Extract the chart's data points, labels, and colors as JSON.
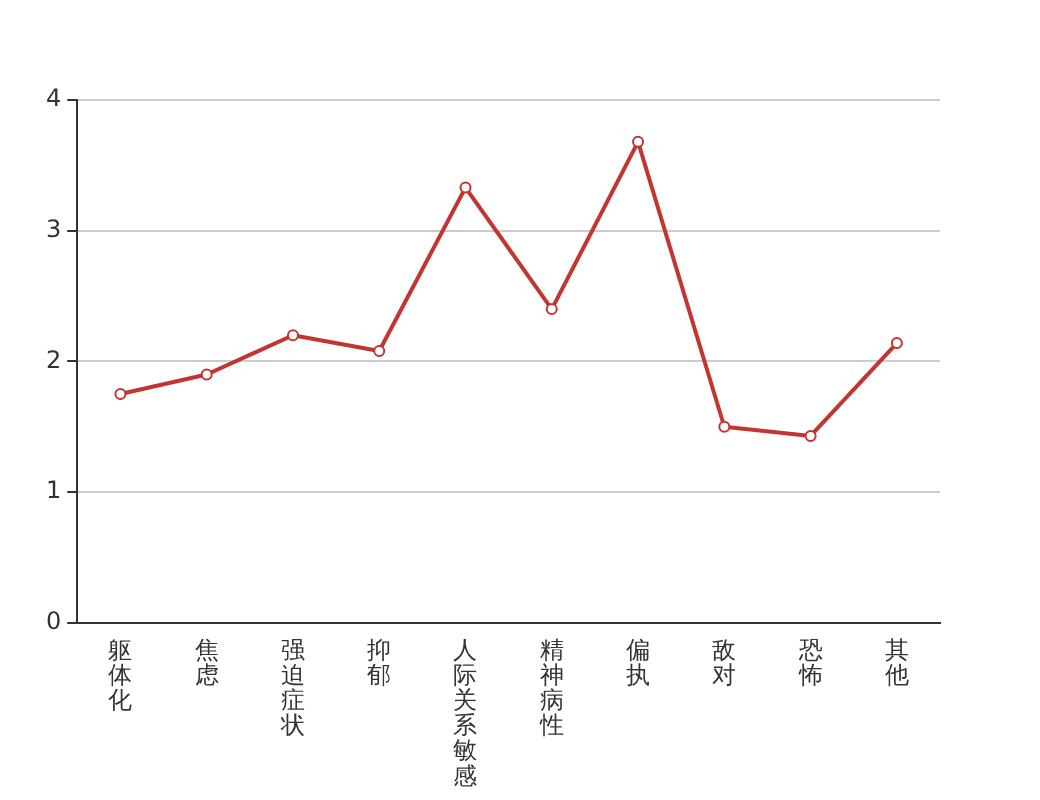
{
  "chart_data": {
    "type": "line",
    "categories": [
      "躯体化",
      "焦虑",
      "强迫症状",
      "抑郁",
      "人际关系敏感",
      "精神病性",
      "偏执",
      "敌对",
      "恐怖",
      "其他"
    ],
    "series": [
      {
        "color": "#c23531",
        "values": [
          1.75,
          1.9,
          2.2,
          2.08,
          3.33,
          2.4,
          3.68,
          1.5,
          1.43,
          2.14
        ]
      }
    ],
    "ylim": [
      0,
      4
    ],
    "yticks": [
      0,
      1,
      2,
      3,
      4
    ],
    "grid": "y",
    "legend": false,
    "marker": "circle",
    "line_style": "solid"
  }
}
